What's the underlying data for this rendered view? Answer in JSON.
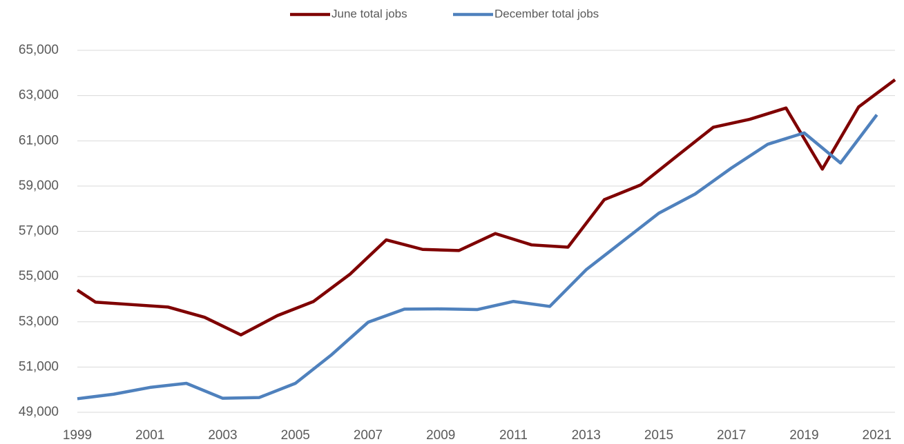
{
  "chart_data": {
    "type": "line",
    "series": [
      {
        "name": "June total jobs",
        "color": "#7f0000",
        "x": [
          1999,
          1999.5,
          2000.5,
          2001.5,
          2002.5,
          2003.5,
          2004.5,
          2005.5,
          2006.5,
          2007.5,
          2008.5,
          2009.5,
          2010.5,
          2011.5,
          2012.5,
          2013.5,
          2014.5,
          2015.5,
          2016.5,
          2017.5,
          2018.5,
          2019.5,
          2020.5,
          2021.5
        ],
        "values": [
          54400,
          53870,
          53760,
          53650,
          53200,
          52420,
          53270,
          53900,
          55100,
          56620,
          56200,
          56150,
          56900,
          56400,
          56300,
          58400,
          59050,
          60330,
          61600,
          61950,
          62450,
          59750,
          62500,
          63700
        ]
      },
      {
        "name": "December total jobs",
        "color": "#4f81bd",
        "x": [
          1999,
          2000,
          2001,
          2002,
          2003,
          2004,
          2005,
          2006,
          2007,
          2008,
          2009,
          2010,
          2011,
          2012,
          2013,
          2014,
          2015,
          2016,
          2017,
          2018,
          2019,
          2020,
          2021
        ],
        "values": [
          49600,
          49800,
          50100,
          50280,
          49620,
          49650,
          50280,
          51550,
          52980,
          53560,
          53570,
          53540,
          53900,
          53680,
          55300,
          56550,
          57800,
          58650,
          59800,
          60850,
          61350,
          60020,
          62150
        ]
      }
    ],
    "xlim": [
      1999,
      2021.5
    ],
    "xticks": [
      1999,
      2001,
      2003,
      2005,
      2007,
      2009,
      2011,
      2013,
      2015,
      2017,
      2019,
      2021
    ],
    "ylim": [
      49000,
      65000
    ],
    "yticks": [
      {
        "value": 49000,
        "label": "49,000"
      },
      {
        "value": 51000,
        "label": "51,000"
      },
      {
        "value": 53000,
        "label": "53,000"
      },
      {
        "value": 55000,
        "label": "55,000"
      },
      {
        "value": 57000,
        "label": "57,000"
      },
      {
        "value": 59000,
        "label": "59,000"
      },
      {
        "value": 61000,
        "label": "61,000"
      },
      {
        "value": 63000,
        "label": "63,000"
      },
      {
        "value": 65000,
        "label": "65,000"
      }
    ],
    "grid": true,
    "legend": "top"
  }
}
